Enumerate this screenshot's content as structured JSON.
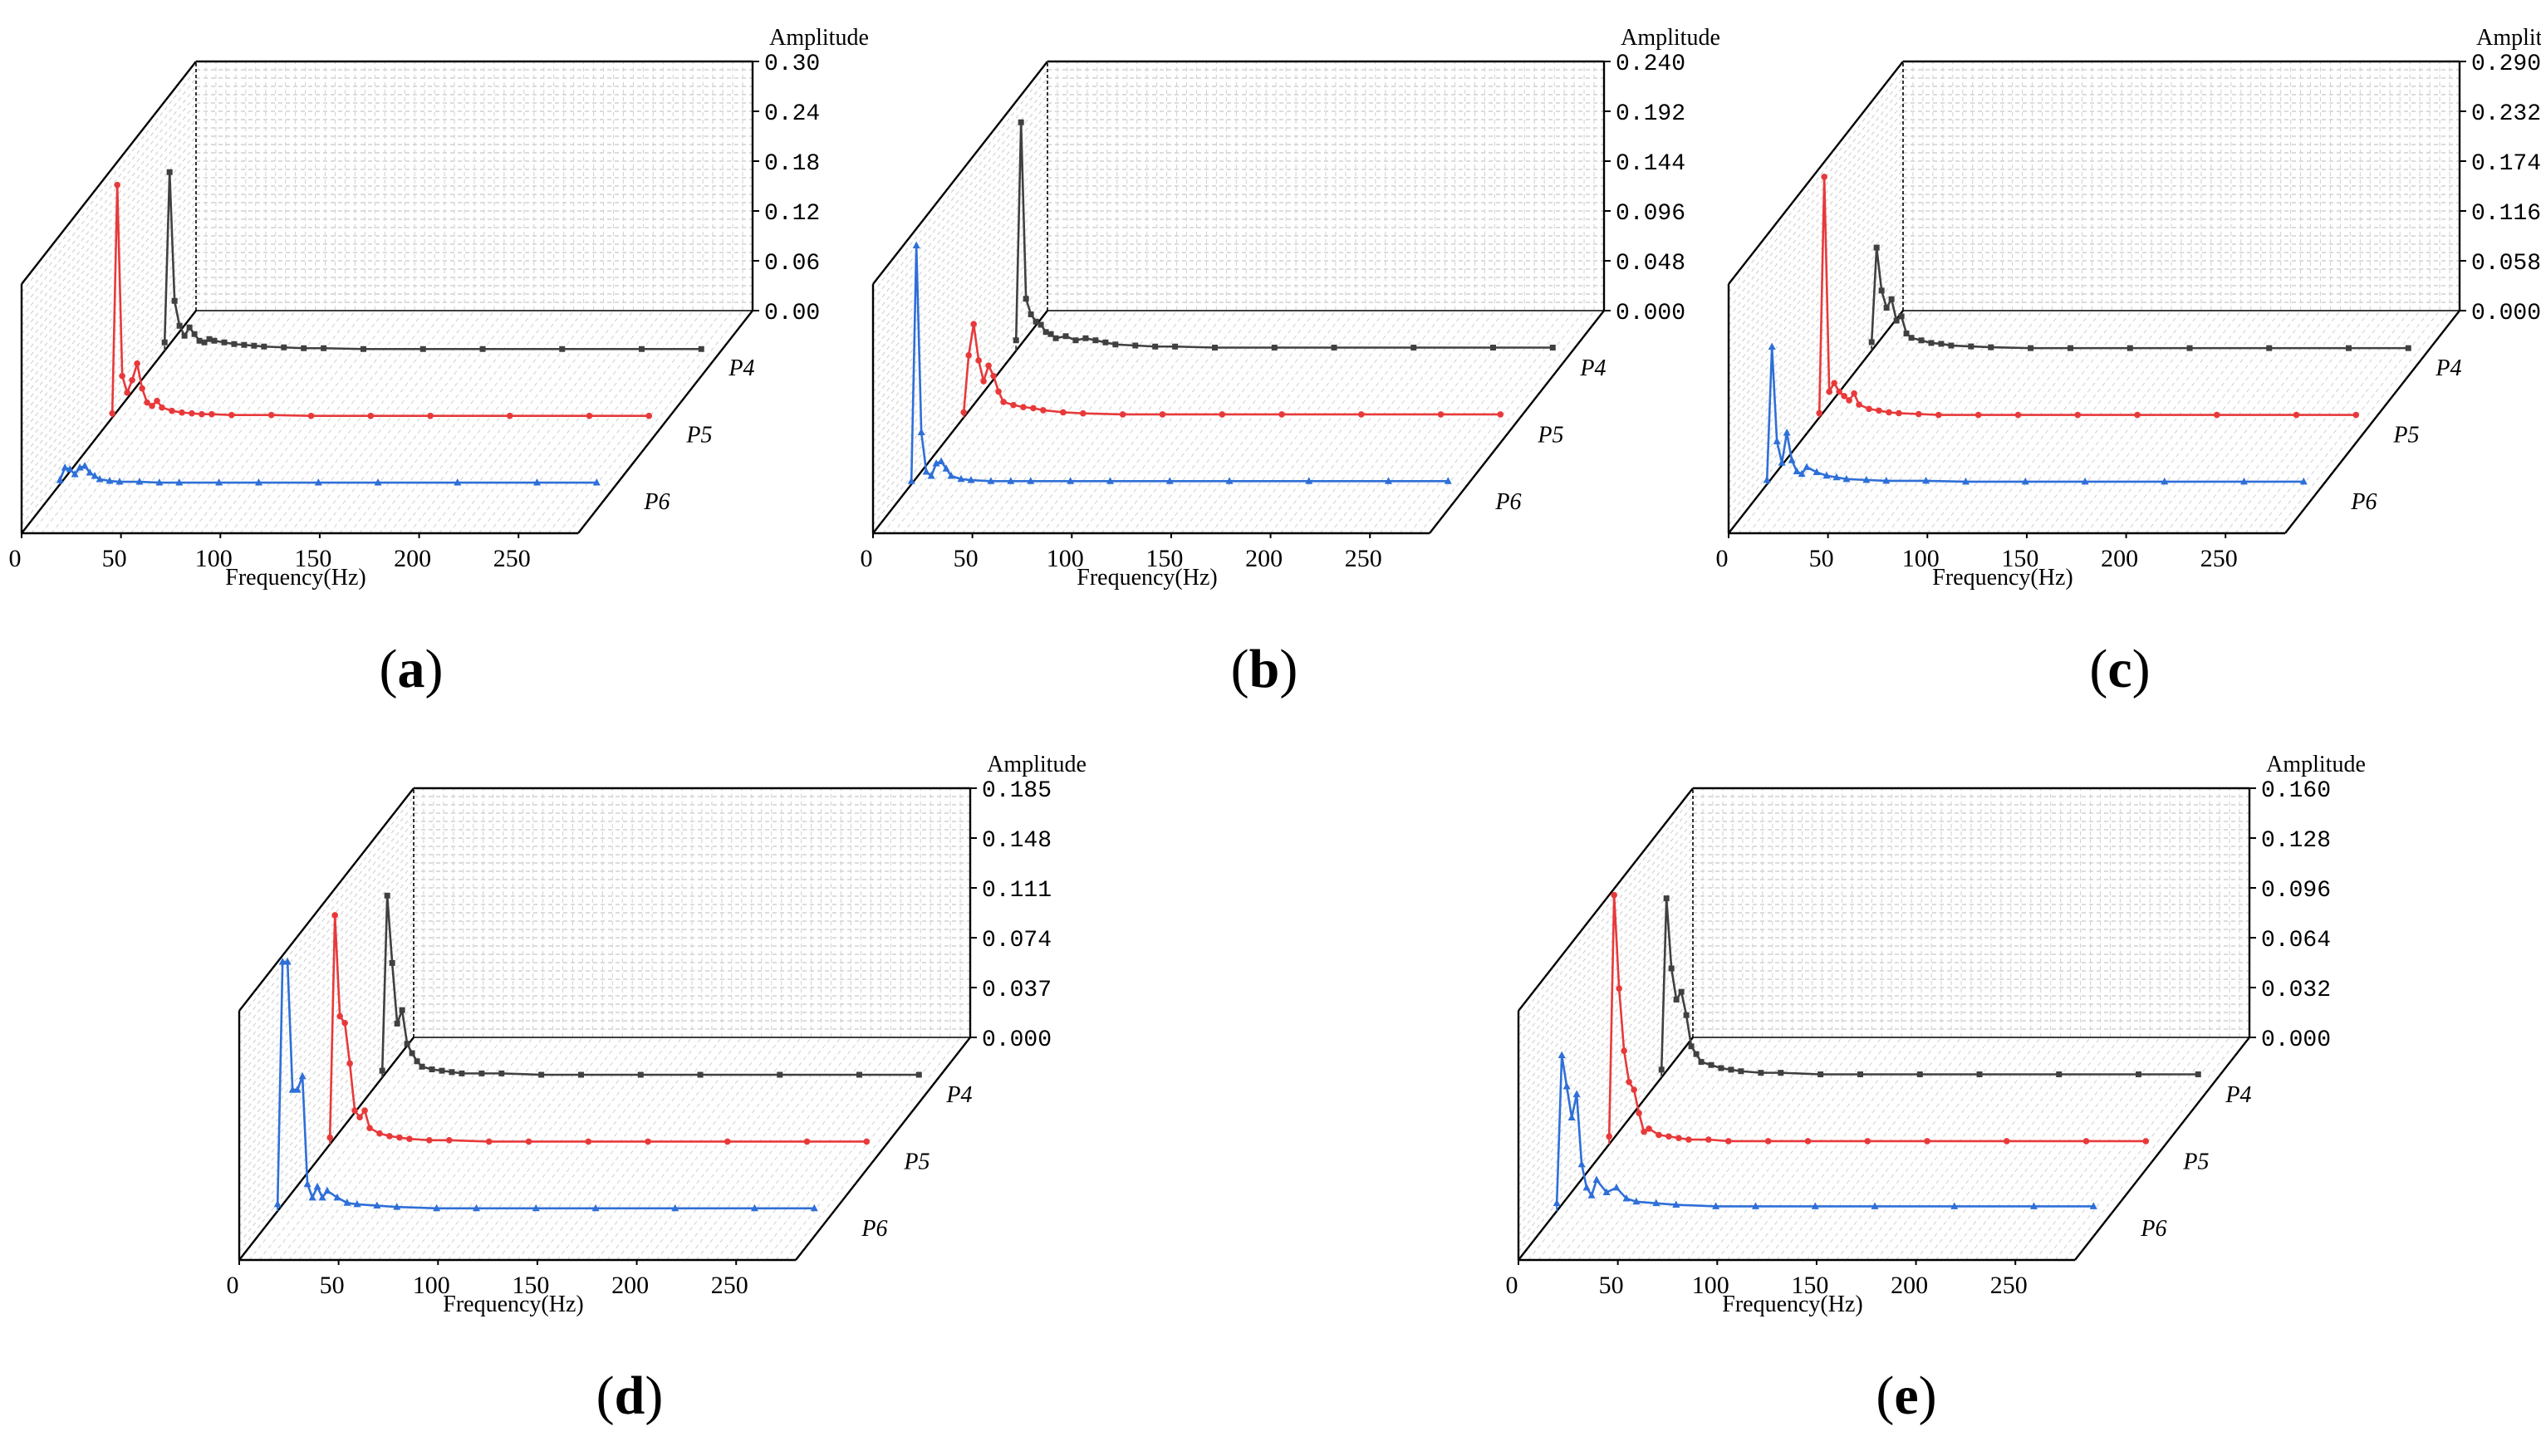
{
  "chart_data": [
    {
      "type": "line",
      "panel_label": "a",
      "xlabel": "Frequency(Hz)",
      "zlabel": "Amplitude",
      "x_ticks": [
        "0",
        "50",
        "100",
        "150",
        "200",
        "250"
      ],
      "z_ticks": [
        "0.00",
        "0.06",
        "0.12",
        "0.18",
        "0.24",
        "0.30"
      ],
      "zlim": [
        0,
        0.3
      ],
      "xlim": [
        0,
        280
      ],
      "series": [
        {
          "name": "P4",
          "color": "#404040",
          "marker": "square",
          "x": [
            0,
            2.5,
            5,
            7.5,
            10,
            12.5,
            15,
            17.5,
            20,
            22.5,
            25,
            30,
            35,
            40,
            45,
            50,
            60,
            70,
            80,
            100,
            130,
            160,
            200,
            240,
            270
          ],
          "y": [
            0.01,
            0.215,
            0.06,
            0.03,
            0.018,
            0.028,
            0.02,
            0.012,
            0.01,
            0.014,
            0.012,
            0.01,
            0.008,
            0.007,
            0.006,
            0.005,
            0.004,
            0.003,
            0.003,
            0.002,
            0.002,
            0.002,
            0.002,
            0.002,
            0.002
          ]
        },
        {
          "name": "P5",
          "color": "#e8393a",
          "marker": "circle",
          "x": [
            0,
            2.5,
            5,
            7.5,
            10,
            12.5,
            15,
            17.5,
            20,
            22.5,
            25,
            30,
            35,
            40,
            45,
            50,
            60,
            80,
            100,
            130,
            160,
            200,
            240,
            270
          ],
          "y": [
            0.005,
            0.28,
            0.05,
            0.03,
            0.045,
            0.065,
            0.035,
            0.018,
            0.014,
            0.02,
            0.012,
            0.008,
            0.006,
            0.005,
            0.004,
            0.004,
            0.003,
            0.003,
            0.002,
            0.002,
            0.002,
            0.002,
            0.002,
            0.002
          ]
        },
        {
          "name": "P6",
          "color": "#2e6fd8",
          "marker": "triangle",
          "x": [
            0,
            2.5,
            5,
            7.5,
            10,
            12.5,
            15,
            17.5,
            20,
            25,
            30,
            40,
            50,
            60,
            80,
            100,
            130,
            160,
            200,
            240,
            270
          ],
          "y": [
            0.005,
            0.02,
            0.018,
            0.012,
            0.02,
            0.022,
            0.014,
            0.01,
            0.006,
            0.004,
            0.003,
            0.003,
            0.002,
            0.002,
            0.002,
            0.002,
            0.002,
            0.002,
            0.002,
            0.002,
            0.002
          ]
        }
      ]
    },
    {
      "type": "line",
      "panel_label": "b",
      "xlabel": "Frequency(Hz)",
      "zlabel": "Amplitude",
      "x_ticks": [
        "0",
        "50",
        "100",
        "150",
        "200",
        "250"
      ],
      "z_ticks": [
        "0.000",
        "0.048",
        "0.096",
        "0.144",
        "0.192",
        "0.240"
      ],
      "zlim": [
        0,
        0.24
      ],
      "xlim": [
        0,
        280
      ],
      "series": [
        {
          "name": "P4",
          "color": "#404040",
          "marker": "square",
          "x": [
            0,
            2.5,
            5,
            7.5,
            10,
            12.5,
            15,
            17.5,
            20,
            25,
            30,
            35,
            40,
            45,
            50,
            60,
            70,
            80,
            100,
            130,
            160,
            200,
            240,
            270
          ],
          "y": [
            0.01,
            0.22,
            0.05,
            0.035,
            0.028,
            0.025,
            0.018,
            0.016,
            0.012,
            0.014,
            0.01,
            0.012,
            0.01,
            0.008,
            0.006,
            0.005,
            0.004,
            0.004,
            0.003,
            0.003,
            0.003,
            0.003,
            0.003,
            0.003
          ]
        },
        {
          "name": "P5",
          "color": "#e8393a",
          "marker": "circle",
          "x": [
            0,
            2.5,
            5,
            7.5,
            10,
            12.5,
            15,
            17.5,
            20,
            25,
            30,
            35,
            40,
            50,
            60,
            80,
            100,
            130,
            160,
            200,
            240,
            270
          ],
          "y": [
            0.005,
            0.06,
            0.09,
            0.055,
            0.035,
            0.05,
            0.04,
            0.025,
            0.015,
            0.012,
            0.01,
            0.009,
            0.007,
            0.005,
            0.004,
            0.003,
            0.003,
            0.003,
            0.003,
            0.003,
            0.003,
            0.003
          ]
        },
        {
          "name": "P6",
          "color": "#2e6fd8",
          "marker": "triangle",
          "x": [
            0,
            2.5,
            5,
            7.5,
            10,
            12.5,
            15,
            17.5,
            20,
            25,
            30,
            40,
            50,
            60,
            80,
            100,
            130,
            160,
            200,
            240,
            270
          ],
          "y": [
            0.003,
            0.23,
            0.05,
            0.012,
            0.008,
            0.02,
            0.022,
            0.015,
            0.008,
            0.005,
            0.004,
            0.003,
            0.003,
            0.003,
            0.003,
            0.003,
            0.003,
            0.003,
            0.003,
            0.003,
            0.003
          ]
        }
      ]
    },
    {
      "type": "line",
      "panel_label": "c",
      "xlabel": "Frequency(Hz)",
      "zlabel": "Amplitude",
      "x_ticks": [
        "0",
        "50",
        "100",
        "150",
        "200",
        "250"
      ],
      "z_ticks": [
        "0.000",
        "0.058",
        "0.116",
        "0.174",
        "0.232",
        "0.290"
      ],
      "zlim": [
        0,
        0.29
      ],
      "xlim": [
        0,
        280
      ],
      "series": [
        {
          "name": "P4",
          "color": "#404040",
          "marker": "square",
          "x": [
            0,
            2.5,
            5,
            7.5,
            10,
            12.5,
            15,
            17.5,
            20,
            25,
            30,
            35,
            40,
            50,
            60,
            80,
            100,
            130,
            160,
            200,
            240,
            270
          ],
          "y": [
            0.01,
            0.12,
            0.07,
            0.05,
            0.06,
            0.035,
            0.04,
            0.02,
            0.015,
            0.012,
            0.009,
            0.008,
            0.006,
            0.005,
            0.004,
            0.003,
            0.003,
            0.003,
            0.003,
            0.003,
            0.003,
            0.003
          ]
        },
        {
          "name": "P5",
          "color": "#e8393a",
          "marker": "circle",
          "x": [
            0,
            2.5,
            5,
            7.5,
            10,
            12.5,
            15,
            17.5,
            20,
            25,
            30,
            35,
            40,
            50,
            60,
            80,
            100,
            130,
            160,
            200,
            240,
            270
          ],
          "y": [
            0.005,
            0.28,
            0.03,
            0.04,
            0.03,
            0.025,
            0.02,
            0.028,
            0.015,
            0.01,
            0.008,
            0.006,
            0.005,
            0.004,
            0.003,
            0.003,
            0.003,
            0.003,
            0.003,
            0.003,
            0.003,
            0.003
          ]
        },
        {
          "name": "P6",
          "color": "#2e6fd8",
          "marker": "triangle",
          "x": [
            0,
            2.5,
            5,
            7.5,
            10,
            12.5,
            15,
            17.5,
            20,
            25,
            30,
            35,
            40,
            50,
            60,
            80,
            100,
            130,
            160,
            200,
            240,
            270
          ],
          "y": [
            0.005,
            0.16,
            0.05,
            0.025,
            0.06,
            0.028,
            0.015,
            0.012,
            0.02,
            0.014,
            0.01,
            0.008,
            0.006,
            0.005,
            0.004,
            0.004,
            0.003,
            0.003,
            0.003,
            0.003,
            0.003,
            0.003
          ]
        }
      ]
    },
    {
      "type": "line",
      "panel_label": "d",
      "xlabel": "Frequency(Hz)",
      "zlabel": "Amplitude",
      "x_ticks": [
        "0",
        "50",
        "100",
        "150",
        "200",
        "250"
      ],
      "z_ticks": [
        "0.000",
        "0.037",
        "0.074",
        "0.111",
        "0.148",
        "0.185"
      ],
      "zlim": [
        0,
        0.185
      ],
      "xlim": [
        0,
        280
      ],
      "series": [
        {
          "name": "P4",
          "color": "#404040",
          "marker": "square",
          "x": [
            0,
            2.5,
            5,
            7.5,
            10,
            12.5,
            15,
            17.5,
            20,
            25,
            30,
            35,
            40,
            50,
            60,
            80,
            100,
            130,
            160,
            200,
            240,
            270
          ],
          "y": [
            0.005,
            0.135,
            0.085,
            0.04,
            0.05,
            0.025,
            0.018,
            0.012,
            0.008,
            0.006,
            0.005,
            0.004,
            0.003,
            0.003,
            0.003,
            0.002,
            0.002,
            0.002,
            0.002,
            0.002,
            0.002,
            0.002
          ]
        },
        {
          "name": "P5",
          "color": "#e8393a",
          "marker": "circle",
          "x": [
            0,
            2.5,
            5,
            7.5,
            10,
            12.5,
            15,
            17.5,
            20,
            25,
            30,
            35,
            40,
            50,
            60,
            80,
            100,
            130,
            160,
            200,
            240,
            270
          ],
          "y": [
            0.005,
            0.17,
            0.095,
            0.09,
            0.06,
            0.025,
            0.02,
            0.025,
            0.012,
            0.008,
            0.006,
            0.005,
            0.004,
            0.003,
            0.003,
            0.002,
            0.002,
            0.002,
            0.002,
            0.002,
            0.002,
            0.002
          ]
        },
        {
          "name": "P6",
          "color": "#2e6fd8",
          "marker": "triangle",
          "x": [
            0,
            2.5,
            5,
            7.5,
            10,
            12.5,
            15,
            17.5,
            20,
            22.5,
            25,
            30,
            35,
            40,
            50,
            60,
            80,
            100,
            130,
            160,
            200,
            240,
            270
          ],
          "y": [
            0.005,
            0.185,
            0.185,
            0.09,
            0.09,
            0.1,
            0.02,
            0.01,
            0.018,
            0.01,
            0.015,
            0.01,
            0.006,
            0.005,
            0.004,
            0.003,
            0.002,
            0.002,
            0.002,
            0.002,
            0.002,
            0.002,
            0.002
          ]
        }
      ]
    },
    {
      "type": "line",
      "panel_label": "e",
      "xlabel": "Frequency(Hz)",
      "zlabel": "Amplitude",
      "x_ticks": [
        "0",
        "50",
        "100",
        "150",
        "200",
        "250"
      ],
      "z_ticks": [
        "0.000",
        "0.032",
        "0.064",
        "0.096",
        "0.128",
        "0.160"
      ],
      "zlim": [
        0,
        0.16
      ],
      "xlim": [
        0,
        280
      ],
      "series": [
        {
          "name": "P4",
          "color": "#404040",
          "marker": "square",
          "x": [
            0,
            2.5,
            5,
            7.5,
            10,
            12.5,
            15,
            17.5,
            20,
            25,
            30,
            35,
            40,
            50,
            60,
            80,
            100,
            130,
            160,
            200,
            240,
            270
          ],
          "y": [
            0.005,
            0.115,
            0.07,
            0.05,
            0.055,
            0.04,
            0.02,
            0.015,
            0.01,
            0.008,
            0.006,
            0.005,
            0.004,
            0.003,
            0.003,
            0.002,
            0.002,
            0.002,
            0.002,
            0.002,
            0.002,
            0.002
          ]
        },
        {
          "name": "P5",
          "color": "#e8393a",
          "marker": "circle",
          "x": [
            0,
            2.5,
            5,
            7.5,
            10,
            12.5,
            15,
            17.5,
            20,
            25,
            30,
            35,
            40,
            50,
            60,
            80,
            100,
            130,
            160,
            200,
            240,
            270
          ],
          "y": [
            0.005,
            0.16,
            0.1,
            0.06,
            0.04,
            0.035,
            0.02,
            0.008,
            0.01,
            0.006,
            0.005,
            0.004,
            0.003,
            0.003,
            0.002,
            0.002,
            0.002,
            0.002,
            0.002,
            0.002,
            0.002,
            0.002
          ]
        },
        {
          "name": "P6",
          "color": "#2e6fd8",
          "marker": "triangle",
          "x": [
            0,
            2.5,
            5,
            7.5,
            10,
            12.5,
            15,
            17.5,
            20,
            25,
            30,
            35,
            40,
            50,
            60,
            80,
            100,
            130,
            160,
            200,
            240,
            270
          ],
          "y": [
            0.005,
            0.1,
            0.08,
            0.06,
            0.075,
            0.03,
            0.015,
            0.01,
            0.02,
            0.012,
            0.015,
            0.008,
            0.006,
            0.005,
            0.004,
            0.003,
            0.003,
            0.003,
            0.003,
            0.003,
            0.003,
            0.003
          ]
        }
      ]
    }
  ],
  "captions": {
    "a": {
      "open": "(",
      "letter": "a",
      "close": ")"
    },
    "b": {
      "open": "(",
      "letter": "b",
      "close": ")"
    },
    "c": {
      "open": "(",
      "letter": "c",
      "close": ")"
    },
    "d": {
      "open": "(",
      "letter": "d",
      "close": ")"
    },
    "e": {
      "open": "(",
      "letter": "e",
      "close": ")"
    }
  }
}
